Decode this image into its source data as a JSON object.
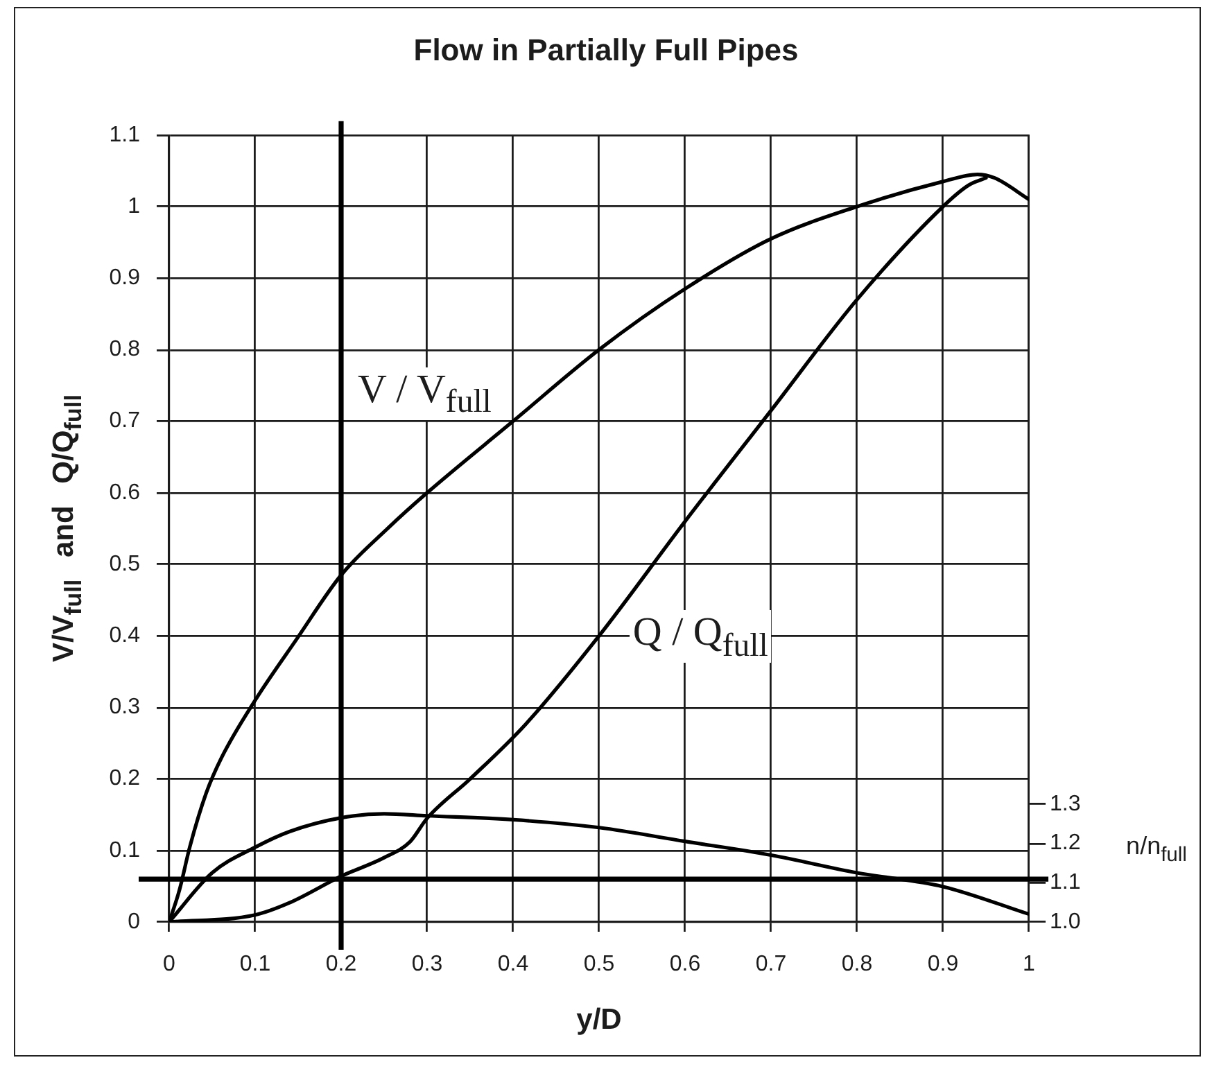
{
  "chart_data": {
    "type": "line",
    "title": "Flow in Partially Full Pipes",
    "xlabel": "y/D",
    "ylabel": "V/V$_{full}$ and Q/Q$_{full}$",
    "y2label": "n/n$_{full}$",
    "series": [
      {
        "x": [
          0,
          0.012,
          0.024,
          0.043,
          0.061,
          0.1,
          0.148,
          0.2,
          0.254,
          0.3,
          0.4,
          0.5,
          0.6,
          0.7,
          0.8,
          0.9,
          0.94,
          0.96,
          1
        ],
        "values": [
          0,
          0.045,
          0.105,
          0.18,
          0.23,
          0.31,
          0.395,
          0.485,
          0.55,
          0.6,
          0.7,
          0.8,
          0.885,
          0.955,
          1.0,
          1.035,
          1.045,
          1.04,
          1.01
        ],
        "color": "#000000"
      },
      {
        "x": [
          0,
          0.1,
          0.14,
          0.2,
          0.25,
          0.28,
          0.3,
          0.35,
          0.415,
          0.5,
          0.6,
          0.7,
          0.8,
          0.9,
          0.93,
          0.95
        ],
        "values": [
          0,
          0.01,
          0.027,
          0.064,
          0.09,
          0.112,
          0.145,
          0.2,
          0.277,
          0.4,
          0.56,
          0.715,
          0.87,
          1.0,
          1.03,
          1.04
        ],
        "color": "#000000"
      },
      {
        "x": [
          0,
          0.05,
          0.1,
          0.14,
          0.2,
          0.25,
          0.3,
          0.4,
          0.5,
          0.6,
          0.7,
          0.8,
          0.9,
          1
        ],
        "values": [
          1.0,
          1.125,
          1.19,
          1.23,
          1.265,
          1.275,
          1.27,
          1.26,
          1.24,
          1.205,
          1.17,
          1.125,
          1.09,
          1.02
        ],
        "color": "#000000",
        "axis": "y2"
      }
    ],
    "xlim": [
      0,
      1
    ],
    "xticks": [
      0,
      0.1,
      0.2,
      0.3,
      0.4,
      0.5,
      0.6,
      0.7,
      0.8,
      0.9,
      1
    ],
    "ylim": [
      0,
      1.1
    ],
    "yticks": [
      0,
      0.1,
      0.2,
      0.3,
      0.4,
      0.5,
      0.6,
      0.7,
      0.8,
      0.9,
      1,
      1.1
    ],
    "y2lim": [
      1,
      3
    ],
    "y2ticks": [
      {
        "value": 1,
        "label": "1.0"
      },
      1.1,
      1.2,
      1.3
    ],
    "ref_lines": [
      {
        "axis": "x",
        "value": 0.2,
        "color": "#000000"
      },
      {
        "axis": "y",
        "value": 0.06,
        "color": "#000000"
      }
    ],
    "annotations": [
      {
        "text": "V / V$_{full}$",
        "x": 0.2,
        "y": 0.77
      },
      {
        "text": "Q / Q$_{full}$",
        "x": 0.52,
        "y": 0.43
      }
    ],
    "grid": true,
    "legend": false
  }
}
